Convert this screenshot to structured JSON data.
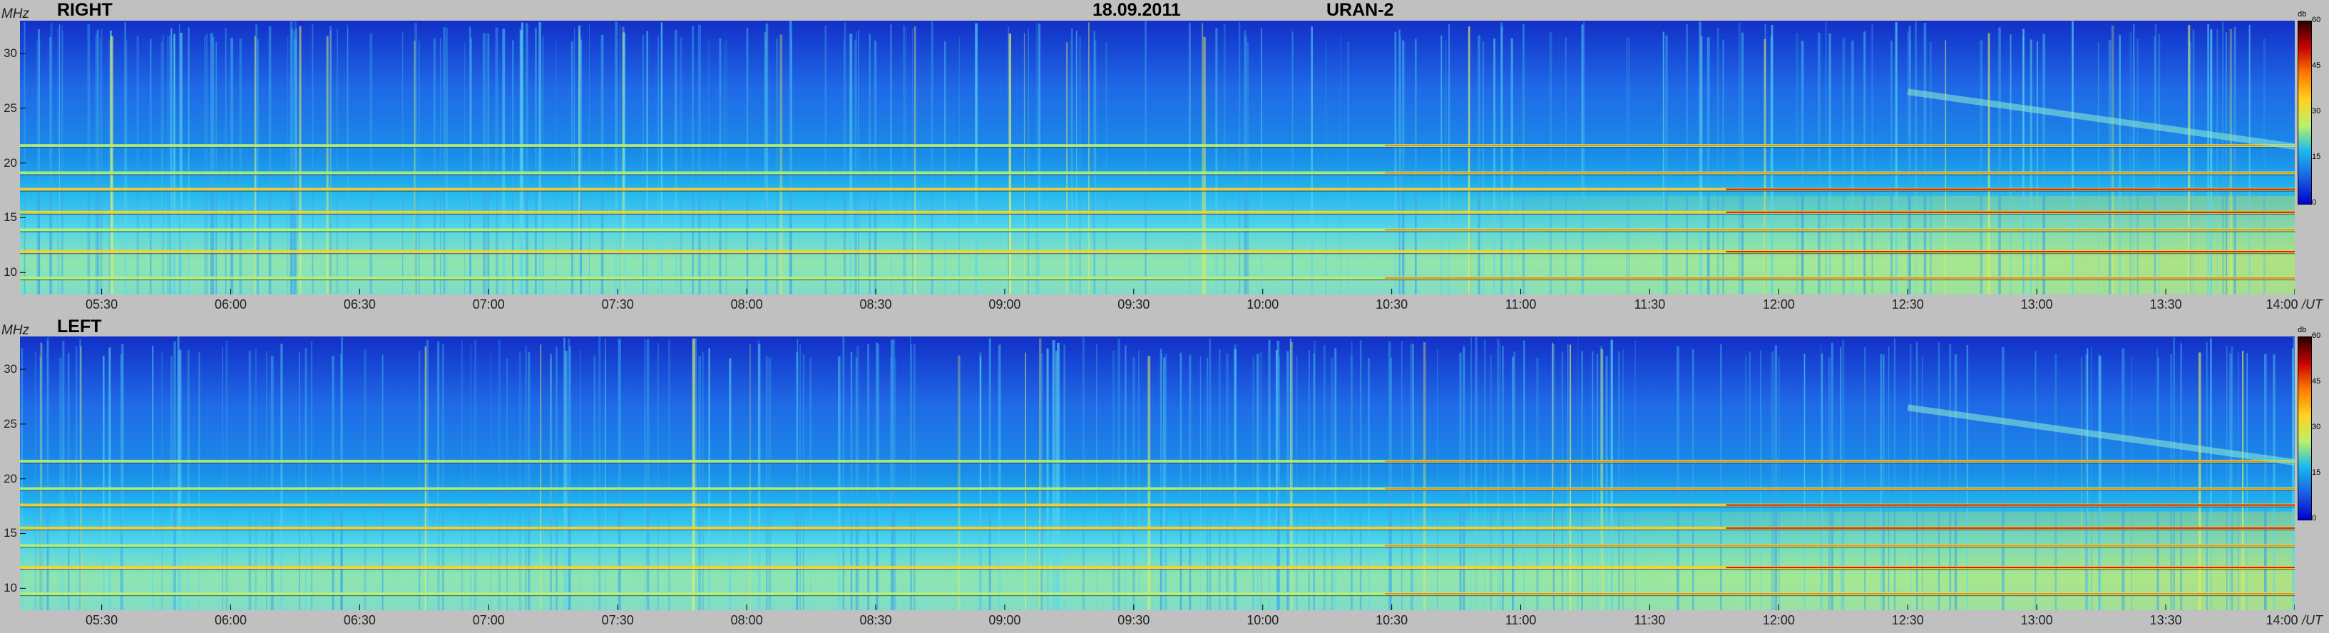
{
  "header": {
    "date": "18.09.2011",
    "instrument": "URAN-2",
    "y_unit": "MHz",
    "x_unit": "UT",
    "colorbar_unit": "db"
  },
  "colors": {
    "background": "#c0c0c0",
    "scale": [
      "#0000cc",
      "#1b5fe0",
      "#17b8f0",
      "#b8f26a",
      "#ffd21f",
      "#ff7a00",
      "#c80000",
      "#2a0000"
    ]
  },
  "chart_data": [
    {
      "type": "heatmap",
      "title": "RIGHT",
      "x_ticks": [
        "05:30",
        "06:00",
        "06:30",
        "07:00",
        "07:30",
        "08:00",
        "08:30",
        "09:00",
        "09:30",
        "10:00",
        "10:30",
        "11:00",
        "11:30",
        "12:00",
        "12:30",
        "13:00",
        "13:30",
        "14:00"
      ],
      "xlim": [
        "05:11",
        "14:00"
      ],
      "y_ticks": [
        10,
        15,
        20,
        25,
        30
      ],
      "ylim": [
        8,
        33
      ],
      "colorbar_ticks": [
        0,
        15,
        30,
        45,
        60
      ],
      "colorbar_range": [
        0,
        60
      ],
      "interference_lines_MHz": [
        9.5,
        11.9,
        13.9,
        15.5,
        17.6,
        19.1,
        21.6
      ],
      "drifting_feature": {
        "start": "12:30",
        "end": "14:00",
        "freq_start_MHz": 26.5,
        "freq_end_MHz": 21.5
      }
    },
    {
      "type": "heatmap",
      "title": "LEFT",
      "x_ticks": [
        "05:30",
        "06:00",
        "06:30",
        "07:00",
        "07:30",
        "08:00",
        "08:30",
        "09:00",
        "09:30",
        "10:00",
        "10:30",
        "11:00",
        "11:30",
        "12:00",
        "12:30",
        "13:00",
        "13:30",
        "14:00"
      ],
      "xlim": [
        "05:11",
        "14:00"
      ],
      "y_ticks": [
        10,
        15,
        20,
        25,
        30
      ],
      "ylim": [
        8,
        33
      ],
      "colorbar_ticks": [
        0,
        15,
        30,
        45,
        60
      ],
      "colorbar_range": [
        0,
        60
      ],
      "interference_lines_MHz": [
        9.5,
        11.9,
        13.9,
        15.5,
        17.6,
        19.1,
        21.6
      ],
      "drifting_feature": {
        "start": "12:30",
        "end": "14:00",
        "freq_start_MHz": 26.5,
        "freq_end_MHz": 21.5
      }
    }
  ]
}
